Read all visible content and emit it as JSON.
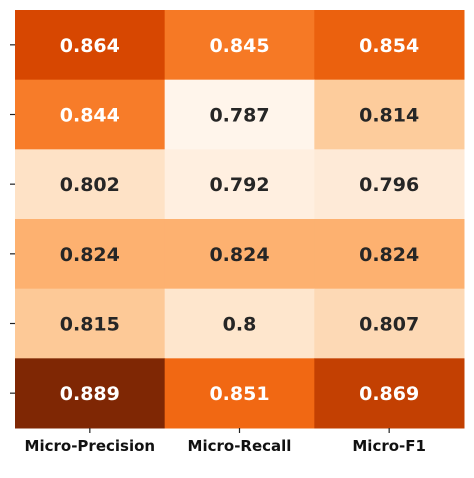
{
  "chart_data": {
    "type": "heatmap",
    "title": "",
    "xlabel": "",
    "ylabel": "",
    "x_categories": [
      "Micro-Precision",
      "Micro-Recall",
      "Micro-F1"
    ],
    "y_categories": [
      "",
      "",
      "",
      "",
      "",
      ""
    ],
    "values": [
      [
        0.864,
        0.845,
        0.854
      ],
      [
        0.844,
        0.787,
        0.814
      ],
      [
        0.802,
        0.792,
        0.796
      ],
      [
        0.824,
        0.824,
        0.824
      ],
      [
        0.815,
        0.8,
        0.807
      ],
      [
        0.889,
        0.851,
        0.869
      ]
    ],
    "value_labels": [
      [
        "0.864",
        "0.845",
        "0.854"
      ],
      [
        "0.844",
        "0.787",
        "0.814"
      ],
      [
        "0.802",
        "0.792",
        "0.796"
      ],
      [
        "0.824",
        "0.824",
        "0.824"
      ],
      [
        "0.815",
        "0.8",
        "0.807"
      ],
      [
        "0.889",
        "0.851",
        "0.869"
      ]
    ],
    "colormap": "Oranges",
    "vmin": 0.787,
    "vmax": 0.889,
    "annotations": true,
    "colorbar": false,
    "grid": false
  }
}
